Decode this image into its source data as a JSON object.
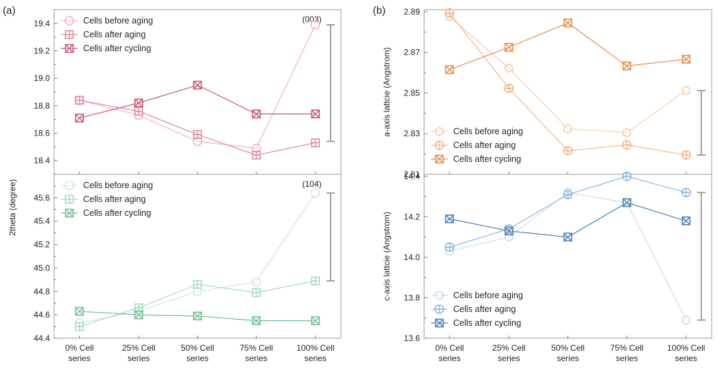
{
  "panels": {
    "a": "(a)",
    "b": "(b)"
  },
  "categories": [
    [
      "0% Cell",
      "series"
    ],
    [
      "25% Cell",
      "series"
    ],
    [
      "50% Cell",
      "series"
    ],
    [
      "75% Cell",
      "series"
    ],
    [
      "100% Cell",
      "series"
    ]
  ],
  "chart_data": [
    {
      "type": "line",
      "panel": "a",
      "position": "top",
      "ylabel": "2theta (degree)",
      "annotation": "(003)",
      "ylim": [
        18.3,
        19.5
      ],
      "yticks": [
        18.4,
        18.6,
        18.8,
        19.0,
        19.2,
        19.4
      ],
      "errorbar": {
        "category": "100% Cell series",
        "range": [
          18.54,
          19.39
        ]
      },
      "legend": "top-left",
      "series": [
        {
          "name": "Cells before aging",
          "marker": "circle",
          "color": "#f1b4c0",
          "values": [
            18.84,
            18.73,
            18.54,
            18.49,
            19.39
          ]
        },
        {
          "name": "Cells after aging",
          "marker": "square-plus",
          "color": "#e0899d",
          "values": [
            18.84,
            18.76,
            18.59,
            18.44,
            18.53
          ]
        },
        {
          "name": "Cells after cycling",
          "marker": "square-x",
          "color": "#c9556f",
          "values": [
            18.71,
            18.82,
            18.95,
            18.74,
            18.74
          ]
        }
      ]
    },
    {
      "type": "line",
      "panel": "a",
      "position": "bottom",
      "ylabel": "",
      "annotation": "(104)",
      "ylim": [
        44.4,
        45.8
      ],
      "yticks": [
        44.4,
        44.6,
        44.8,
        45.0,
        45.2,
        45.4,
        45.6
      ],
      "errorbar": {
        "category": "100% Cell series",
        "range": [
          44.89,
          45.64
        ]
      },
      "legend": "top-left",
      "series": [
        {
          "name": "Cells before aging",
          "marker": "circle",
          "color": "#cfe8d9",
          "values": [
            44.53,
            44.63,
            44.8,
            44.88,
            45.64
          ]
        },
        {
          "name": "Cells after aging",
          "marker": "square-plus",
          "color": "#a7d9bc",
          "values": [
            44.5,
            44.66,
            44.86,
            44.79,
            44.89
          ]
        },
        {
          "name": "Cells after cycling",
          "marker": "square-x",
          "color": "#6fbf94",
          "values": [
            44.63,
            44.6,
            44.59,
            44.55,
            44.55
          ]
        }
      ]
    },
    {
      "type": "line",
      "panel": "b",
      "position": "top",
      "ylabel": "a-axis lattcie (Angstrom)",
      "annotation": "",
      "ylim": [
        2.81,
        2.891
      ],
      "yticks": [
        2.81,
        2.83,
        2.85,
        2.87,
        2.89
      ],
      "errorbar": {
        "category": "100% Cell series",
        "range": [
          2.8195,
          2.8512
        ]
      },
      "legend": "bottom-left",
      "series": [
        {
          "name": "Cells before aging",
          "marker": "hexagon",
          "color": "#f8ccaa",
          "values": [
            2.8875,
            2.8622,
            2.8324,
            2.8305,
            2.8512
          ]
        },
        {
          "name": "Cells after aging",
          "marker": "circle-plus",
          "color": "#f5b383",
          "values": [
            2.8894,
            2.8523,
            2.8216,
            2.8245,
            2.8195
          ]
        },
        {
          "name": "Cells after cycling",
          "marker": "square-x",
          "color": "#ec8a4a",
          "values": [
            2.8615,
            2.8725,
            2.8845,
            2.8633,
            2.8666
          ]
        }
      ]
    },
    {
      "type": "line",
      "panel": "b",
      "position": "bottom",
      "ylabel": "c-axis lattcie (Angstrom)",
      "annotation": "",
      "ylim": [
        13.6,
        14.41
      ],
      "yticks": [
        13.6,
        13.8,
        14.0,
        14.2,
        14.4
      ],
      "errorbar": {
        "category": "100% Cell series",
        "range": [
          13.69,
          14.32
        ]
      },
      "legend": "bottom-left",
      "series": [
        {
          "name": "Cells before aging",
          "marker": "hexagon",
          "color": "#c7dcf0",
          "values": [
            14.03,
            14.1,
            14.32,
            14.27,
            13.69
          ]
        },
        {
          "name": "Cells after aging",
          "marker": "circle-plus",
          "color": "#8fb6dd",
          "values": [
            14.05,
            14.14,
            14.31,
            14.4,
            14.32
          ]
        },
        {
          "name": "Cells after cycling",
          "marker": "square-x",
          "color": "#4d7fb3",
          "values": [
            14.19,
            14.13,
            14.1,
            14.27,
            14.18
          ]
        }
      ]
    }
  ]
}
